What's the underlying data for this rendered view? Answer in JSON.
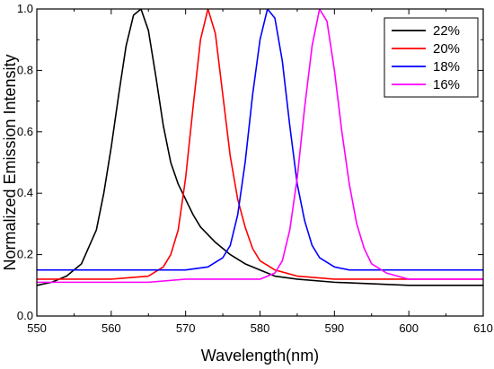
{
  "chart_data": {
    "type": "line",
    "title": "",
    "xlabel": "Wavelength(nm)",
    "ylabel": "Normalized Emission Intensity",
    "xlim": [
      550,
      610
    ],
    "ylim": [
      0.0,
      1.0
    ],
    "xticks": [
      550,
      560,
      570,
      580,
      590,
      600,
      610
    ],
    "yticks": [
      0.0,
      0.2,
      0.4,
      0.6,
      0.8,
      1.0
    ],
    "xtick_labels": [
      "550",
      "560",
      "570",
      "580",
      "590",
      "600",
      "610"
    ],
    "ytick_labels": [
      "0.0",
      "0.2",
      "0.4",
      "0.6",
      "0.8",
      "1.0"
    ],
    "grid": false,
    "legend_position": "top-right",
    "series": [
      {
        "name": "22%",
        "color": "#000000",
        "x": [
          550,
          552,
          554,
          556,
          558,
          559,
          560,
          561,
          562,
          563,
          564,
          565,
          566,
          567,
          568,
          569,
          570,
          571,
          572,
          574,
          576,
          578,
          580,
          582,
          585,
          590,
          595,
          600,
          605,
          610
        ],
        "y": [
          0.1,
          0.11,
          0.13,
          0.17,
          0.28,
          0.4,
          0.55,
          0.72,
          0.88,
          0.98,
          1.0,
          0.93,
          0.78,
          0.62,
          0.5,
          0.43,
          0.38,
          0.33,
          0.29,
          0.24,
          0.2,
          0.17,
          0.15,
          0.13,
          0.12,
          0.11,
          0.105,
          0.1,
          0.1,
          0.1
        ]
      },
      {
        "name": "20%",
        "color": "#ff0000",
        "x": [
          550,
          555,
          560,
          565,
          567,
          568,
          569,
          570,
          571,
          572,
          573,
          574,
          575,
          576,
          577,
          578,
          579,
          580,
          582,
          585,
          590,
          595,
          600,
          605,
          610
        ],
        "y": [
          0.12,
          0.12,
          0.12,
          0.13,
          0.16,
          0.2,
          0.28,
          0.45,
          0.68,
          0.9,
          1.0,
          0.92,
          0.72,
          0.52,
          0.38,
          0.29,
          0.22,
          0.18,
          0.15,
          0.13,
          0.12,
          0.12,
          0.12,
          0.12,
          0.12
        ]
      },
      {
        "name": "18%",
        "color": "#0000ff",
        "x": [
          550,
          555,
          560,
          565,
          570,
          573,
          575,
          576,
          577,
          578,
          579,
          580,
          581,
          582,
          583,
          584,
          585,
          586,
          587,
          588,
          590,
          592,
          595,
          600,
          605,
          610
        ],
        "y": [
          0.15,
          0.15,
          0.15,
          0.15,
          0.15,
          0.16,
          0.19,
          0.23,
          0.33,
          0.5,
          0.72,
          0.9,
          1.0,
          0.97,
          0.83,
          0.62,
          0.43,
          0.31,
          0.23,
          0.19,
          0.16,
          0.15,
          0.15,
          0.15,
          0.15,
          0.15
        ]
      },
      {
        "name": "16%",
        "color": "#ff00ff",
        "x": [
          550,
          555,
          560,
          565,
          570,
          575,
          580,
          582,
          583,
          584,
          585,
          586,
          587,
          588,
          589,
          590,
          591,
          592,
          593,
          594,
          595,
          597,
          600,
          605,
          610
        ],
        "y": [
          0.11,
          0.11,
          0.11,
          0.11,
          0.12,
          0.12,
          0.12,
          0.14,
          0.18,
          0.28,
          0.45,
          0.68,
          0.88,
          1.0,
          0.96,
          0.8,
          0.6,
          0.43,
          0.3,
          0.22,
          0.17,
          0.14,
          0.12,
          0.12,
          0.12
        ]
      }
    ]
  }
}
